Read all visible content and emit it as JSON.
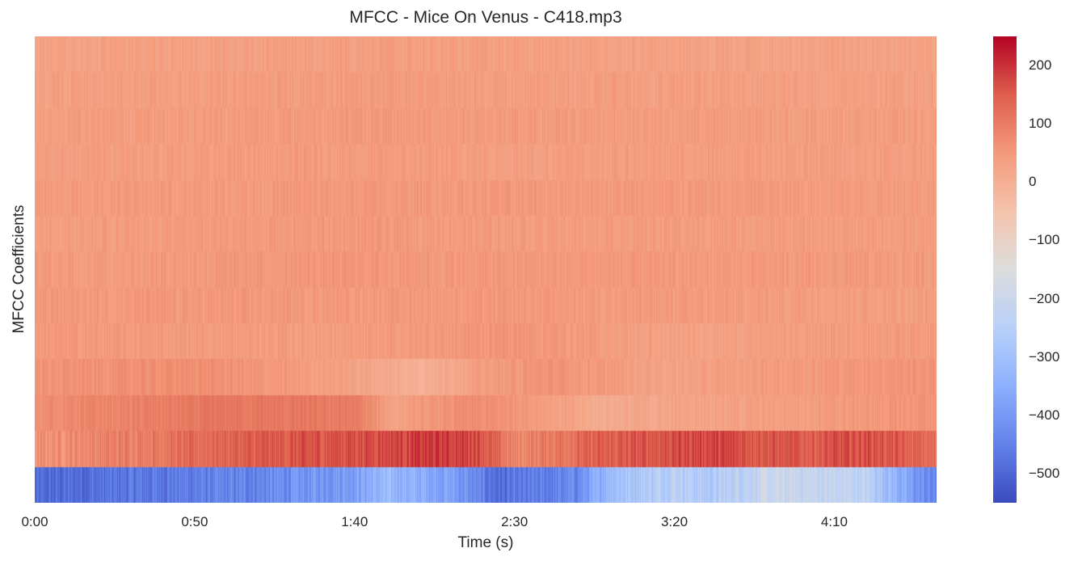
{
  "chart_data": {
    "type": "heatmap",
    "title": "MFCC - Mice On Venus - C418.mp3",
    "xlabel": "Time (s)",
    "ylabel": "MFCC Coefficients",
    "x_tick_labels": [
      "0:00",
      "0:50",
      "1:40",
      "2:30",
      "3:20",
      "4:10"
    ],
    "x_tick_seconds": [
      0,
      50,
      100,
      150,
      200,
      250
    ],
    "x_range_seconds": [
      0,
      282
    ],
    "n_coefficients": 13,
    "colormap": "coolwarm",
    "color_range": [
      -550,
      250
    ],
    "colorbar_ticks": [
      200,
      100,
      0,
      -100,
      -200,
      -300,
      -400,
      -500
    ],
    "colorbar_tick_labels": [
      "200",
      "100",
      "0",
      "−100",
      "−200",
      "−300",
      "−400",
      "−500"
    ],
    "coefficient_profiles": [
      {
        "coefficient": 0,
        "segments": [
          [
            0,
            -500
          ],
          [
            30,
            -470
          ],
          [
            70,
            -440
          ],
          [
            100,
            -380
          ],
          [
            110,
            -320
          ],
          [
            130,
            -380
          ],
          [
            145,
            -490
          ],
          [
            170,
            -430
          ],
          [
            180,
            -300
          ],
          [
            200,
            -230
          ],
          [
            210,
            -270
          ],
          [
            230,
            -200
          ],
          [
            260,
            -230
          ],
          [
            275,
            -400
          ],
          [
            282,
            -450
          ]
        ]
      },
      {
        "coefficient": 1,
        "segments": [
          [
            0,
            60
          ],
          [
            30,
            100
          ],
          [
            60,
            140
          ],
          [
            100,
            170
          ],
          [
            125,
            190
          ],
          [
            138,
            180
          ],
          [
            150,
            80
          ],
          [
            175,
            140
          ],
          [
            210,
            180
          ],
          [
            240,
            150
          ],
          [
            260,
            170
          ],
          [
            282,
            120
          ]
        ]
      },
      {
        "coefficient": 2,
        "segments": [
          [
            0,
            70
          ],
          [
            30,
            90
          ],
          [
            60,
            110
          ],
          [
            100,
            100
          ],
          [
            112,
            30
          ],
          [
            135,
            70
          ],
          [
            150,
            60
          ],
          [
            175,
            10
          ],
          [
            210,
            30
          ],
          [
            240,
            40
          ],
          [
            282,
            60
          ]
        ]
      },
      {
        "coefficient": 3,
        "segments": [
          [
            0,
            60
          ],
          [
            50,
            70
          ],
          [
            100,
            30
          ],
          [
            120,
            0
          ],
          [
            140,
            40
          ],
          [
            160,
            60
          ],
          [
            200,
            30
          ],
          [
            240,
            50
          ],
          [
            282,
            60
          ]
        ]
      },
      {
        "coefficient": 4,
        "segments": [
          [
            0,
            50
          ],
          [
            100,
            40
          ],
          [
            150,
            60
          ],
          [
            200,
            30
          ],
          [
            282,
            50
          ]
        ]
      },
      {
        "coefficient": 5,
        "segments": [
          [
            0,
            50
          ],
          [
            100,
            50
          ],
          [
            150,
            50
          ],
          [
            282,
            40
          ]
        ]
      },
      {
        "coefficient": 6,
        "segments": [
          [
            0,
            45
          ],
          [
            100,
            55
          ],
          [
            150,
            50
          ],
          [
            282,
            45
          ]
        ]
      },
      {
        "coefficient": 7,
        "segments": [
          [
            0,
            40
          ],
          [
            100,
            50
          ],
          [
            150,
            45
          ],
          [
            282,
            40
          ]
        ]
      },
      {
        "coefficient": 8,
        "segments": [
          [
            0,
            45
          ],
          [
            100,
            50
          ],
          [
            150,
            50
          ],
          [
            282,
            45
          ]
        ]
      },
      {
        "coefficient": 9,
        "segments": [
          [
            0,
            40
          ],
          [
            100,
            45
          ],
          [
            150,
            40
          ],
          [
            282,
            40
          ]
        ]
      },
      {
        "coefficient": 10,
        "segments": [
          [
            0,
            40
          ],
          [
            100,
            50
          ],
          [
            150,
            45
          ],
          [
            282,
            40
          ]
        ]
      },
      {
        "coefficient": 11,
        "segments": [
          [
            0,
            35
          ],
          [
            100,
            45
          ],
          [
            150,
            40
          ],
          [
            282,
            35
          ]
        ]
      },
      {
        "coefficient": 12,
        "segments": [
          [
            0,
            30
          ],
          [
            100,
            40
          ],
          [
            150,
            35
          ],
          [
            282,
            30
          ]
        ]
      }
    ]
  }
}
